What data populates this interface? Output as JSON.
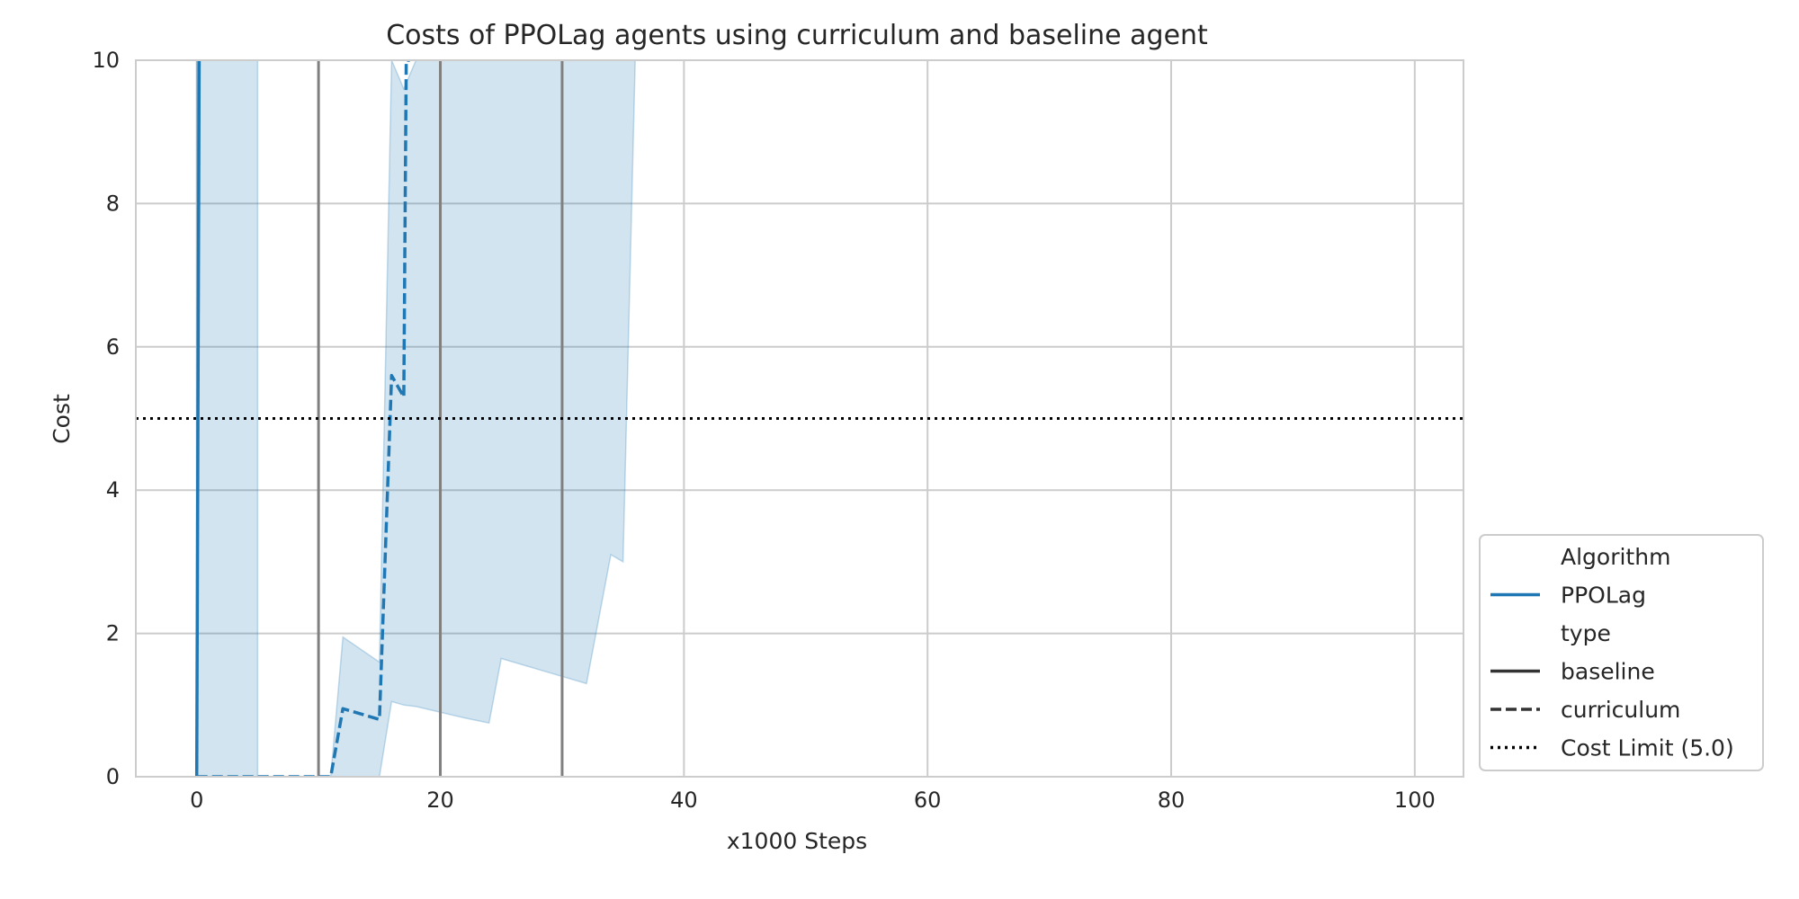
{
  "chart_data": {
    "type": "line",
    "title": "Costs of PPOLag agents using curriculum and baseline agent",
    "xlabel": "x1000 Steps",
    "ylabel": "Cost",
    "xlim": [
      -5,
      104
    ],
    "ylim": [
      0,
      10
    ],
    "xticks": [
      0,
      20,
      40,
      60,
      80,
      100
    ],
    "yticks": [
      0,
      2,
      4,
      6,
      8,
      10
    ],
    "grid": true,
    "legend_position": "lower-right-outside",
    "colors": {
      "series": "#1f77b4",
      "band": "#1f77b4",
      "vertical_lines": "#808080",
      "cost_limit": "#000000",
      "grid": "#cccccc",
      "legend_black": "#333333"
    },
    "cost_limit": 5.0,
    "vertical_lines": [
      10,
      20,
      30
    ],
    "series": [
      {
        "algorithm": "PPOLag",
        "type": "baseline",
        "x": [
          0,
          0.2
        ],
        "y": [
          0,
          10
        ],
        "band": {
          "x": [
            0,
            0.2,
            5,
            5
          ],
          "upper": [
            10,
            10,
            10,
            10
          ],
          "lower": [
            0,
            0,
            0,
            0
          ]
        }
      },
      {
        "algorithm": "PPOLag",
        "type": "curriculum",
        "x": [
          0,
          11,
          12,
          15,
          16,
          17,
          17.2,
          17.5
        ],
        "y": [
          0,
          0,
          0.95,
          0.8,
          5.6,
          5.3,
          10,
          10
        ],
        "band": {
          "x": [
            11,
            12,
            15,
            16,
            17,
            18,
            20,
            22,
            24,
            25,
            30,
            32,
            34,
            35,
            36
          ],
          "upper": [
            0,
            1.95,
            1.6,
            10,
            9.6,
            10,
            10,
            10,
            10,
            10,
            10,
            10,
            10,
            10,
            10
          ],
          "lower": [
            0,
            0,
            0,
            1.05,
            1.0,
            0.98,
            0.9,
            0.82,
            0.75,
            1.65,
            1.4,
            1.3,
            3.1,
            3.0,
            10
          ]
        }
      }
    ],
    "legend": {
      "entries": [
        {
          "label": "Algorithm",
          "style": "header"
        },
        {
          "label": "PPOLag",
          "style": "solid-blue"
        },
        {
          "label": "type",
          "style": "header"
        },
        {
          "label": "baseline",
          "style": "solid-black"
        },
        {
          "label": "curriculum",
          "style": "dashed-black"
        },
        {
          "label": "Cost Limit (5.0)",
          "style": "dotted-black"
        }
      ]
    }
  }
}
